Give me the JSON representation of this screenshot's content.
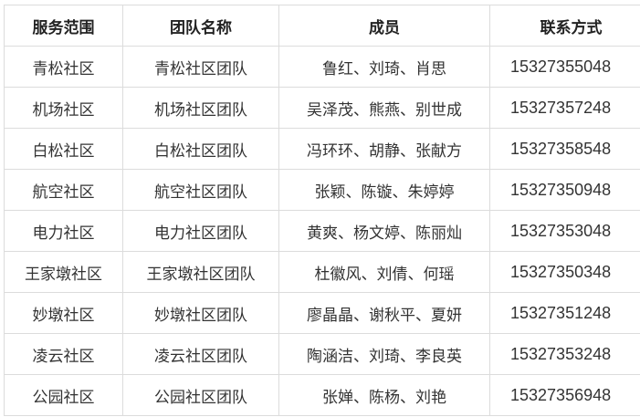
{
  "table": {
    "headers": [
      "服务范围",
      "团队名称",
      "成员",
      "联系方式"
    ],
    "rows": [
      [
        "青松社区",
        "青松社区团队",
        "鲁红、刘琦、肖思",
        "15327355048"
      ],
      [
        "机场社区",
        "机场社区团队",
        "吴泽茂、熊燕、别世成",
        "15327357248"
      ],
      [
        "白松社区",
        "白松社区团队",
        "冯环环、胡静、张献方",
        "15327358548"
      ],
      [
        "航空社区",
        "航空社区团队",
        "张颖、陈镟、朱婷婷",
        "15327350948"
      ],
      [
        "电力社区",
        "电力社区团队",
        "黄爽、杨文婷、陈丽灿",
        "15327353048"
      ],
      [
        "王家墩社区",
        "王家墩社区团队",
        "杜徽风、刘倩、何瑶",
        "15327350348"
      ],
      [
        "妙墩社区",
        "妙墩社区团队",
        "廖晶晶、谢秋平、夏妍",
        "15327351248"
      ],
      [
        "凌云社区",
        "凌云社区团队",
        "陶涵洁、刘琦、李良英",
        "15327353248"
      ],
      [
        "公园社区",
        "公园社区团队",
        "张婵、陈杨、刘艳",
        "15327356948"
      ]
    ]
  }
}
